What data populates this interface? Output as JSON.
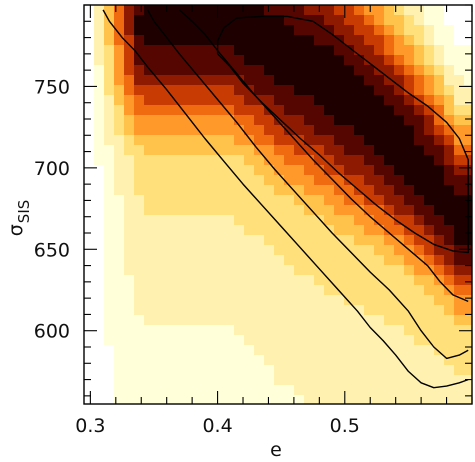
{
  "chart_data": {
    "type": "heatmap",
    "title": "",
    "xlabel": "e",
    "ylabel": {
      "symbol": "σ",
      "subscript": "SIS"
    },
    "xlim": [
      0.295,
      0.6
    ],
    "ylim": [
      555,
      800
    ],
    "x_ticks": [
      {
        "value": 0.3,
        "label": "0.3"
      },
      {
        "value": 0.4,
        "label": "0.4"
      },
      {
        "value": 0.5,
        "label": "0.5"
      }
    ],
    "y_ticks": [
      {
        "value": 600,
        "label": "600"
      },
      {
        "value": 650,
        "label": "650"
      },
      {
        "value": 700,
        "label": "700"
      },
      {
        "value": 750,
        "label": "750"
      }
    ],
    "x_minor_step": 0.02,
    "y_minor_step": 10,
    "colormap": [
      "#ffffff",
      "#ffffd9",
      "#fff2b0",
      "#ffe07a",
      "#ffc24a",
      "#ff9a2a",
      "#f06a10",
      "#c83c04",
      "#8e1a02",
      "#560600",
      "#1e0000"
    ],
    "density_ridge": [
      {
        "e": 0.41,
        "sigma": 790,
        "width": 0.05
      },
      {
        "e": 0.45,
        "sigma": 772,
        "width": 0.055
      },
      {
        "e": 0.49,
        "sigma": 752,
        "width": 0.055
      },
      {
        "e": 0.53,
        "sigma": 725,
        "width": 0.05
      },
      {
        "e": 0.565,
        "sigma": 695,
        "width": 0.045
      },
      {
        "e": 0.59,
        "sigma": 668,
        "width": 0.04
      }
    ],
    "contours": [
      {
        "level": "outer",
        "points": [
          [
            0.31,
            797
          ],
          [
            0.315,
            790
          ],
          [
            0.325,
            780
          ],
          [
            0.335,
            772
          ],
          [
            0.345,
            762
          ],
          [
            0.36,
            748
          ],
          [
            0.375,
            733
          ],
          [
            0.39,
            718
          ],
          [
            0.405,
            704
          ],
          [
            0.42,
            690
          ],
          [
            0.435,
            677
          ],
          [
            0.45,
            664
          ],
          [
            0.465,
            651
          ],
          [
            0.48,
            638
          ],
          [
            0.495,
            625
          ],
          [
            0.51,
            612
          ],
          [
            0.52,
            602
          ],
          [
            0.53,
            594
          ],
          [
            0.54,
            585
          ],
          [
            0.55,
            575
          ],
          [
            0.56,
            568
          ],
          [
            0.57,
            565
          ],
          [
            0.58,
            566
          ],
          [
            0.59,
            568
          ],
          [
            0.597,
            570
          ]
        ]
      },
      {
        "level": "second",
        "points": [
          [
            0.345,
            797
          ],
          [
            0.35,
            790
          ],
          [
            0.36,
            780
          ],
          [
            0.37,
            770
          ],
          [
            0.385,
            756
          ],
          [
            0.4,
            742
          ],
          [
            0.415,
            728
          ],
          [
            0.43,
            713
          ],
          [
            0.445,
            699
          ],
          [
            0.46,
            686
          ],
          [
            0.475,
            673
          ],
          [
            0.49,
            660
          ],
          [
            0.505,
            648
          ],
          [
            0.52,
            636
          ],
          [
            0.535,
            625
          ],
          [
            0.55,
            612
          ],
          [
            0.56,
            600
          ],
          [
            0.57,
            590
          ],
          [
            0.58,
            583
          ],
          [
            0.59,
            585
          ],
          [
            0.597,
            588
          ]
        ]
      },
      {
        "level": "third",
        "points": [
          [
            0.37,
            797
          ],
          [
            0.38,
            790
          ],
          [
            0.39,
            782
          ],
          [
            0.4,
            772
          ],
          [
            0.415,
            758
          ],
          [
            0.43,
            744
          ],
          [
            0.445,
            731
          ],
          [
            0.46,
            718
          ],
          [
            0.475,
            705
          ],
          [
            0.49,
            693
          ],
          [
            0.505,
            681
          ],
          [
            0.52,
            670
          ],
          [
            0.535,
            660
          ],
          [
            0.55,
            650
          ],
          [
            0.565,
            640
          ],
          [
            0.575,
            630
          ],
          [
            0.585,
            622
          ],
          [
            0.597,
            618
          ]
        ]
      },
      {
        "level": "inner",
        "points": [
          [
            0.4,
            770
          ],
          [
            0.41,
            762
          ],
          [
            0.42,
            752
          ],
          [
            0.435,
            740
          ],
          [
            0.45,
            729
          ],
          [
            0.465,
            718
          ],
          [
            0.48,
            708
          ],
          [
            0.495,
            697
          ],
          [
            0.51,
            687
          ],
          [
            0.525,
            677
          ],
          [
            0.54,
            668
          ],
          [
            0.555,
            660
          ],
          [
            0.57,
            653
          ],
          [
            0.585,
            649
          ],
          [
            0.597,
            648
          ],
          [
            0.597,
            705
          ],
          [
            0.59,
            718
          ],
          [
            0.58,
            728
          ],
          [
            0.565,
            738
          ],
          [
            0.55,
            746
          ],
          [
            0.535,
            755
          ],
          [
            0.52,
            764
          ],
          [
            0.505,
            773
          ],
          [
            0.49,
            782
          ],
          [
            0.475,
            790
          ],
          [
            0.455,
            793
          ],
          [
            0.435,
            793
          ],
          [
            0.415,
            792
          ],
          [
            0.405,
            786
          ],
          [
            0.4,
            778
          ],
          [
            0.4,
            770
          ]
        ]
      }
    ]
  }
}
